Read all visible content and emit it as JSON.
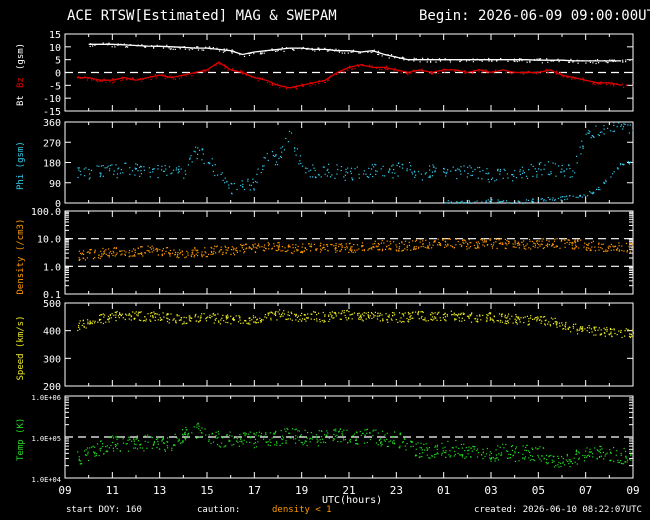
{
  "header": {
    "title": "ACE RTSW[Estimated] MAG & SWEPAM",
    "begin": "Begin: 2026-06-09 09:00:00UTC"
  },
  "footer": {
    "start_doy": "start DOY: 160",
    "caution": "caution:",
    "density_note": "density < 1",
    "created": "created: 2026-06-10 08:22:07UTC"
  },
  "colors": {
    "bt": "#ffffff",
    "bz": "#e00000",
    "phi": "#33ccee",
    "density": "#ff9900",
    "speed": "#eeee22",
    "temp": "#22dd22",
    "axes": "#ffffff",
    "background": "#000000"
  },
  "chart_data": [
    {
      "type": "line",
      "panel": "mag",
      "ylabel_parts": [
        {
          "text": "Bt",
          "color": "#ffffff"
        },
        {
          "text": "Bz",
          "color": "#e00000"
        },
        {
          "text": "(gsm)",
          "color": "#ffffff"
        }
      ],
      "yticks": [
        "15",
        "10",
        "5",
        "0",
        "-5",
        "-10",
        "-15"
      ],
      "ylim": [
        -15,
        15
      ],
      "reference_lines": [
        0
      ],
      "grid": false,
      "series": [
        {
          "name": "Bt",
          "color": "#ffffff",
          "x": [
            1,
            1.5,
            2,
            2.5,
            3,
            3.5,
            4,
            4.5,
            5,
            5.5,
            6,
            6.5,
            7,
            7.5,
            8,
            8.5,
            9,
            9.5,
            10,
            10.5,
            11,
            11.5,
            12,
            12.5,
            13,
            13.5,
            14,
            14.5,
            15,
            15.5,
            16,
            16.5,
            17,
            17.5,
            18,
            18.5,
            19,
            19.5,
            20,
            20.5,
            21,
            21.5,
            22,
            22.5,
            23,
            23.5
          ],
          "y": [
            11,
            11,
            11,
            10.8,
            10.5,
            10.3,
            10.2,
            10,
            9.8,
            9.5,
            9.5,
            9,
            8.5,
            7,
            8,
            8.5,
            9,
            9.5,
            9.5,
            9,
            9,
            8.5,
            8.5,
            8,
            8.5,
            7,
            6,
            5,
            5,
            5,
            5,
            5,
            5,
            5,
            5,
            5,
            5,
            5,
            4.8,
            4.8,
            4.8,
            4.5,
            4.5,
            4.5,
            4.5,
            4.5
          ]
        },
        {
          "name": "Bz",
          "color": "#e00000",
          "x": [
            0.5,
            1,
            1.5,
            2,
            2.5,
            3,
            3.5,
            4,
            4.5,
            5,
            5.5,
            6,
            6.5,
            7,
            7.5,
            8,
            8.5,
            9,
            9.5,
            10,
            10.5,
            11,
            11.5,
            12,
            12.5,
            13,
            13.5,
            14,
            14.5,
            15,
            15.5,
            16,
            16.5,
            17,
            17.5,
            18,
            18.5,
            19,
            19.5,
            20,
            20.5,
            21,
            21.5,
            22,
            22.5,
            23,
            23.5
          ],
          "y": [
            -2,
            -2,
            -3,
            -3,
            -2,
            -3,
            -2,
            -1,
            -2,
            -1,
            0,
            1,
            4,
            1,
            0,
            -2,
            -3,
            -5,
            -6,
            -5,
            -4,
            -3,
            0,
            2,
            3,
            2,
            2,
            1,
            0,
            1,
            0,
            1,
            1,
            0,
            1,
            0,
            1,
            0,
            0,
            0,
            1,
            -1,
            -2,
            -3,
            -4,
            -4,
            -5
          ]
        }
      ]
    },
    {
      "type": "scatter",
      "panel": "phi",
      "ylabel": "Phi (gsm)",
      "color": "#33ccee",
      "yticks": [
        "360",
        "270",
        "180",
        "90",
        "0"
      ],
      "ylim": [
        0,
        360
      ],
      "grid": false,
      "x": [
        0.5,
        1,
        1.5,
        2,
        2.5,
        3,
        3.5,
        4,
        4.5,
        5,
        5.5,
        6,
        6.5,
        7,
        7.5,
        8,
        8.5,
        9,
        9.5,
        10,
        10.5,
        11,
        11.5,
        12,
        12.5,
        13,
        13.5,
        14,
        14.5,
        15,
        15.5,
        16,
        16.5,
        17,
        17.5,
        18,
        18.5,
        19,
        19.5,
        20,
        20.5,
        21,
        21.5,
        22,
        22.5,
        23,
        23.5
      ],
      "y": [
        140,
        130,
        150,
        140,
        150,
        145,
        150,
        145,
        145,
        140,
        230,
        200,
        120,
        60,
        75,
        90,
        210,
        200,
        300,
        160,
        140,
        150,
        140,
        130,
        140,
        145,
        135,
        150,
        160,
        130,
        140,
        150,
        135,
        140,
        130,
        120,
        135,
        130,
        140,
        150,
        160,
        140,
        150,
        310,
        330,
        350,
        345
      ]
    },
    {
      "type": "scatter",
      "panel": "phi-late",
      "color": "#33ccee",
      "x": [
        16,
        16.5,
        17,
        17.5,
        18,
        18.5,
        19,
        19.5,
        20,
        20.5,
        21,
        21.5,
        22,
        22.5,
        23,
        23.5
      ],
      "y": [
        5,
        5,
        8,
        5,
        10,
        5,
        5,
        10,
        15,
        20,
        25,
        30,
        40,
        60,
        120,
        180
      ]
    },
    {
      "type": "scatter",
      "panel": "density",
      "ylabel": "Density (/cm3)",
      "color": "#ff9900",
      "yscale": "log",
      "yticks": [
        "100.0",
        "10.0",
        "1.0",
        "0.1"
      ],
      "ylim": [
        0.1,
        100
      ],
      "reference_lines": [
        1,
        10
      ],
      "grid": false,
      "x": [
        0.5,
        1,
        1.5,
        2,
        2.5,
        3,
        3.5,
        4,
        4.5,
        5,
        5.5,
        6,
        6.5,
        7,
        7.5,
        8,
        8.5,
        9,
        9.5,
        10,
        10.5,
        11,
        11.5,
        12,
        12.5,
        13,
        13.5,
        14,
        14.5,
        15,
        15.5,
        16,
        16.5,
        17,
        17.5,
        18,
        18.5,
        19,
        19.5,
        20,
        20.5,
        21,
        21.5,
        22,
        22.5,
        23,
        23.5
      ],
      "y": [
        2.5,
        2.8,
        3,
        3.5,
        3,
        3.5,
        4,
        3.5,
        3.5,
        3,
        3.5,
        3.5,
        4,
        4,
        4.5,
        5,
        5,
        5,
        4.5,
        4.5,
        5,
        5,
        5,
        5,
        5,
        5.5,
        6,
        5.5,
        6,
        6.5,
        6.5,
        7,
        7,
        6.5,
        7,
        7,
        7,
        7,
        6.5,
        7,
        7,
        7,
        6.5,
        6,
        5.5,
        5,
        5
      ]
    },
    {
      "type": "scatter",
      "panel": "speed",
      "ylabel": "Speed (km/s)",
      "color": "#eeee22",
      "yticks": [
        "500",
        "400",
        "300",
        "200"
      ],
      "ylim": [
        200,
        500
      ],
      "grid": false,
      "x": [
        0.5,
        1,
        1.5,
        2,
        2.5,
        3,
        3.5,
        4,
        4.5,
        5,
        5.5,
        6,
        6.5,
        7,
        7.5,
        8,
        8.5,
        9,
        9.5,
        10,
        10.5,
        11,
        11.5,
        12,
        12.5,
        13,
        13.5,
        14,
        14.5,
        15,
        15.5,
        16,
        16.5,
        17,
        17.5,
        18,
        18.5,
        19,
        19.5,
        20,
        20.5,
        21,
        21.5,
        22,
        22.5,
        23,
        23.5
      ],
      "y": [
        420,
        430,
        445,
        450,
        460,
        455,
        455,
        450,
        445,
        440,
        445,
        450,
        445,
        440,
        440,
        445,
        450,
        460,
        455,
        450,
        455,
        450,
        455,
        460,
        455,
        450,
        450,
        450,
        450,
        455,
        455,
        455,
        455,
        450,
        450,
        450,
        445,
        445,
        440,
        440,
        435,
        420,
        410,
        405,
        400,
        395,
        395
      ]
    },
    {
      "type": "scatter",
      "panel": "temp",
      "ylabel": "Temp (K)",
      "color": "#22dd22",
      "yscale": "log",
      "yticks": [
        "1.0E+06",
        "1.0E+05",
        "1.0E+04"
      ],
      "ylim": [
        10000,
        1000000
      ],
      "reference_lines": [
        100000
      ],
      "grid": false,
      "x": [
        0.5,
        1,
        1.5,
        2,
        2.5,
        3,
        3.5,
        4,
        4.5,
        5,
        5.5,
        6,
        6.5,
        7,
        7.5,
        8,
        8.5,
        9,
        9.5,
        10,
        10.5,
        11,
        11.5,
        12,
        12.5,
        13,
        13.5,
        14,
        14.5,
        15,
        15.5,
        16,
        16.5,
        17,
        17.5,
        18,
        18.5,
        19,
        19.5,
        20,
        20.5,
        21,
        21.5,
        22,
        22.5,
        23,
        23.5
      ],
      "y": [
        30000,
        40000,
        60000,
        70000,
        65000,
        70000,
        75000,
        70000,
        65000,
        120000,
        150000,
        110000,
        90000,
        95000,
        90000,
        85000,
        90000,
        100000,
        110000,
        100000,
        95000,
        100000,
        110000,
        100000,
        105000,
        100000,
        95000,
        90000,
        60000,
        50000,
        45000,
        50000,
        55000,
        45000,
        45000,
        40000,
        45000,
        40000,
        45000,
        40000,
        30000,
        25000,
        30000,
        40000,
        45000,
        40000,
        35000
      ]
    }
  ],
  "xaxis": {
    "title": "UTC(hours)",
    "ticks": [
      "09",
      "11",
      "13",
      "15",
      "17",
      "19",
      "21",
      "23",
      "01",
      "03",
      "05",
      "07",
      "09"
    ]
  }
}
